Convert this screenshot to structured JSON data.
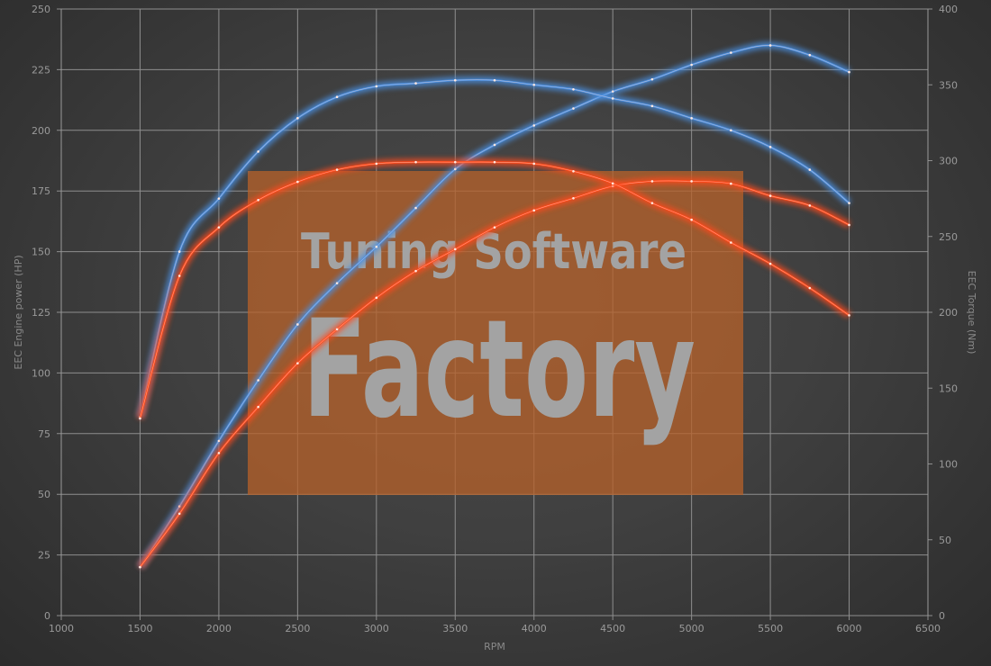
{
  "chart_data": {
    "type": "line",
    "xlabel": "RPM",
    "ylabel": "EEC Engine power (HP)",
    "y2label": "EEC Torque (Nm)",
    "xlim": [
      1000,
      6500
    ],
    "ylim": [
      0,
      250
    ],
    "y2lim": [
      0,
      400
    ],
    "xticks": [
      1000,
      1500,
      2000,
      2500,
      3000,
      3500,
      4000,
      4500,
      5000,
      5500,
      6000,
      6500
    ],
    "yticks": [
      0,
      25,
      50,
      75,
      100,
      125,
      150,
      175,
      200,
      225,
      250
    ],
    "y2ticks": [
      0,
      50,
      100,
      150,
      200,
      250,
      300,
      350,
      400
    ],
    "grid": true,
    "watermark": {
      "line1": "Tuning Software",
      "line2": "Factory",
      "box_color": "#b8622a"
    },
    "x": [
      1500,
      1750,
      2000,
      2250,
      2500,
      2750,
      3000,
      3250,
      3500,
      3750,
      4000,
      4250,
      4500,
      4750,
      5000,
      5250,
      5500,
      5750,
      6000
    ],
    "series": [
      {
        "axis": "left",
        "color": "#4a90e2",
        "values": [
          20,
          45,
          72,
          97,
          120,
          137,
          152,
          168,
          184,
          194,
          202,
          209,
          216,
          221,
          227,
          232,
          235,
          231,
          224
        ]
      },
      {
        "axis": "right",
        "color": "#4a90e2",
        "values": [
          131,
          240,
          275,
          306,
          328,
          342,
          349,
          351,
          353,
          353,
          350,
          347,
          341,
          336,
          328,
          320,
          309,
          294,
          272
        ]
      },
      {
        "axis": "left",
        "color": "#ff4a1c",
        "values": [
          20,
          42,
          67,
          86,
          104,
          118,
          131,
          142,
          151,
          160,
          167,
          172,
          177,
          179,
          179,
          178,
          173,
          169,
          161
        ]
      },
      {
        "axis": "right",
        "color": "#ff4a1c",
        "values": [
          130,
          224,
          256,
          274,
          286,
          294,
          298,
          299,
          299,
          299,
          298,
          293,
          285,
          272,
          261,
          246,
          232,
          216,
          198
        ]
      }
    ]
  }
}
